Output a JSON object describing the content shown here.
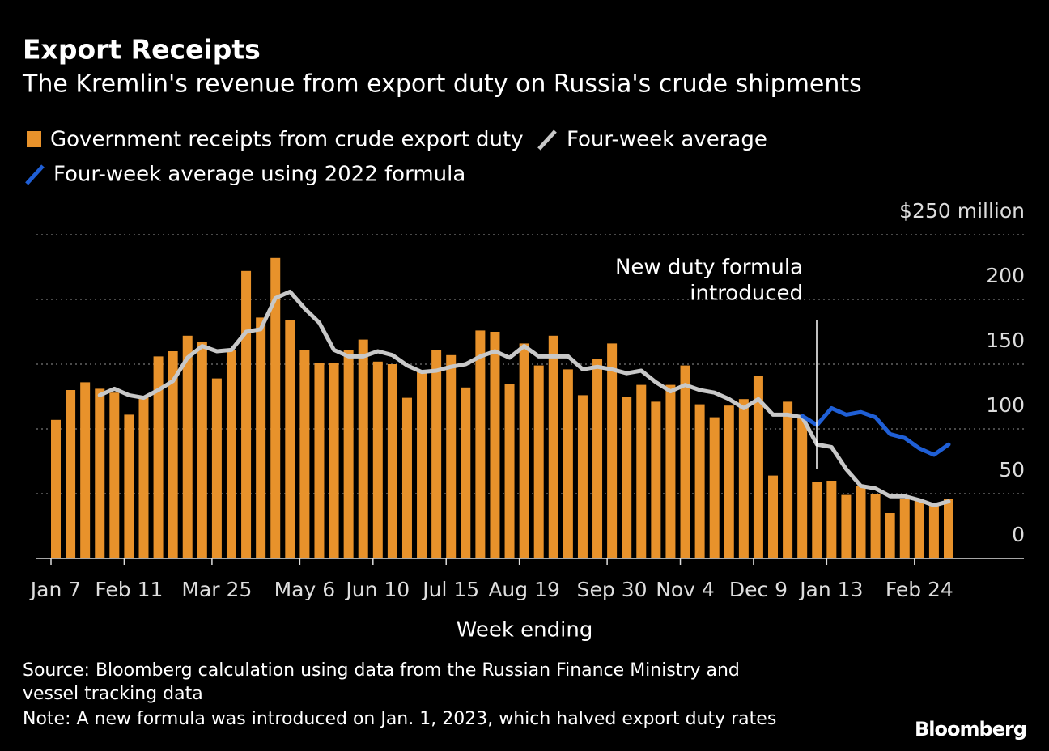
{
  "chart_data": {
    "type": "bar",
    "title": "Export Receipts",
    "subtitle": "The Kremlin's revenue from export duty on Russia's crude shipments",
    "x_label": "Week ending",
    "categories": [
      "Jan 7",
      null,
      null,
      null,
      null,
      "Feb 11",
      null,
      null,
      null,
      null,
      null,
      "Mar 25",
      null,
      null,
      null,
      null,
      null,
      "May 6",
      null,
      null,
      null,
      null,
      "Jun 10",
      null,
      null,
      null,
      null,
      "Jul 15",
      null,
      null,
      null,
      null,
      "Aug 19",
      null,
      null,
      null,
      null,
      null,
      "Sep 30",
      null,
      null,
      null,
      null,
      "Nov 4",
      null,
      null,
      null,
      null,
      "Dec 9",
      null,
      null,
      null,
      null,
      "Jan 13",
      null,
      null,
      null,
      null,
      null,
      "Feb 24",
      null,
      null
    ],
    "series": [
      {
        "name": "Government receipts from crude export duty",
        "color": "#e8922b",
        "type": "bar",
        "values": [
          107,
          130,
          136,
          131,
          128,
          111,
          125,
          156,
          160,
          172,
          167,
          139,
          161,
          222,
          186,
          232,
          184,
          161,
          151,
          151,
          161,
          169,
          152,
          150,
          124,
          144,
          161,
          157,
          132,
          176,
          175,
          135,
          166,
          149,
          172,
          146,
          126,
          154,
          166,
          125,
          134,
          121,
          134,
          149,
          119,
          109,
          118,
          123,
          141,
          64,
          121,
          109,
          59,
          60,
          49,
          56,
          50,
          35,
          46,
          45,
          42,
          46
        ]
      },
      {
        "name": "Four-week average",
        "color": "#c8c8c8",
        "type": "line",
        "values": [
          null,
          null,
          null,
          126,
          131,
          126,
          124,
          130,
          137,
          155,
          164,
          160,
          161,
          175,
          177,
          201,
          206,
          193,
          182,
          161,
          156,
          156,
          160,
          157,
          149,
          144,
          145,
          148,
          150,
          156,
          160,
          155,
          164,
          156,
          156,
          156,
          146,
          148,
          146,
          143,
          145,
          136,
          129,
          134,
          130,
          128,
          123,
          116,
          123,
          111,
          111,
          109,
          88,
          86,
          69,
          56,
          54,
          48,
          48,
          45,
          41,
          44
        ]
      },
      {
        "name": "Four-week average using 2022 formula",
        "color": "#1f5fd6",
        "type": "line",
        "values": [
          null,
          null,
          null,
          null,
          null,
          null,
          null,
          null,
          null,
          null,
          null,
          null,
          null,
          null,
          null,
          null,
          null,
          null,
          null,
          null,
          null,
          null,
          null,
          null,
          null,
          null,
          null,
          null,
          null,
          null,
          null,
          null,
          null,
          null,
          null,
          null,
          null,
          null,
          null,
          null,
          null,
          null,
          null,
          null,
          null,
          null,
          null,
          null,
          null,
          null,
          null,
          110,
          103,
          116,
          111,
          113,
          109,
          96,
          93,
          85,
          80,
          88
        ]
      }
    ],
    "ylim": [
      0,
      250
    ],
    "yticks": [
      0,
      50,
      100,
      150,
      200,
      {
        "value": 250,
        "label": "$250 million"
      }
    ],
    "grid": true,
    "annotation": [
      "New duty formula",
      "introduced"
    ]
  },
  "source": [
    "Source: Bloomberg calculation using data from the Russian Finance Ministry and",
    "vessel tracking data"
  ],
  "note": "Note: A new formula was introduced on Jan. 1, 2023, which halved export duty rates",
  "brand": "Bloomberg"
}
